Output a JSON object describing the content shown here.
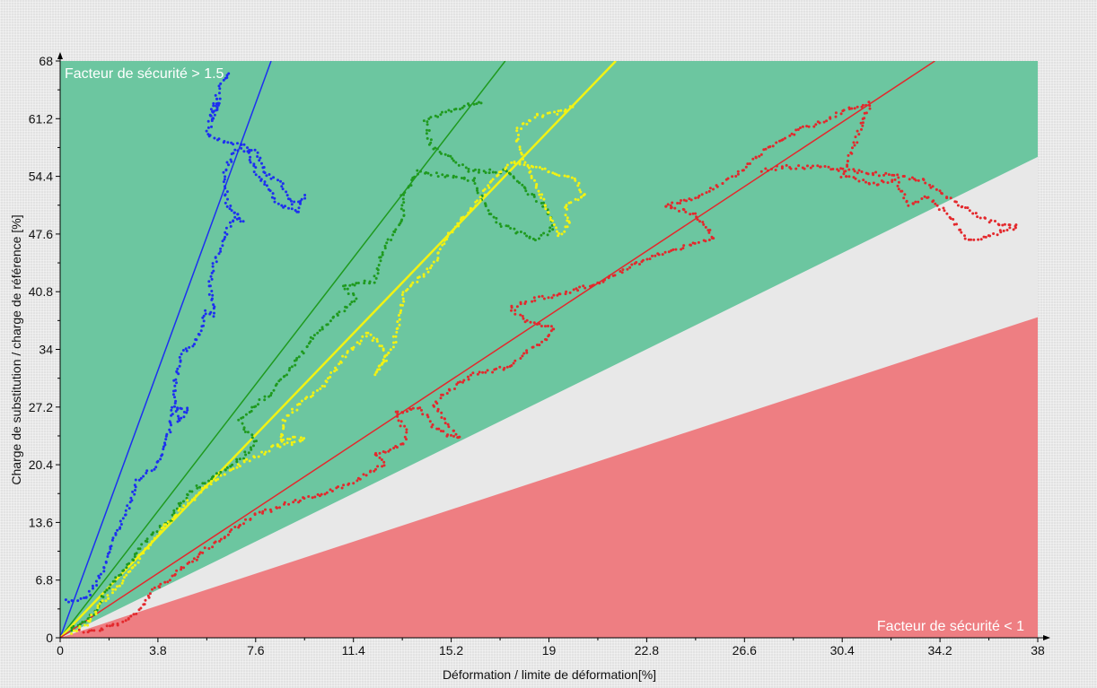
{
  "chart_data": {
    "type": "scatter",
    "xlabel": "Déformation / limite de déformation[%]",
    "ylabel": "Charge de substitution / charge de référence [%]",
    "xlim": [
      0,
      38
    ],
    "ylim": [
      0,
      68
    ],
    "x_ticks": [
      "0",
      "3.8",
      "7.6",
      "11.4",
      "15.2",
      "19",
      "22.8",
      "26.6",
      "30.4",
      "34.2",
      "38"
    ],
    "y_ticks": [
      "0",
      "6.8",
      "13.6",
      "20.4",
      "27.2",
      "34",
      "40.8",
      "47.6",
      "54.4",
      "61.2",
      "68"
    ],
    "annotations": {
      "safe_zone": "Facteur de sécurité > 1.5",
      "danger_zone": "Facteur de sécurité < 1"
    },
    "zones": [
      {
        "id": "safe",
        "color": "#6cc6a0",
        "boundary_y_at_xmax": 56.7
      },
      {
        "id": "transition",
        "color": "#e8e8e8",
        "boundary_y_at_xmax": 37.8
      },
      {
        "id": "danger",
        "color": "#ee7e82"
      }
    ],
    "series": [
      {
        "color": "#1d2ff0",
        "fit_line": [
          [
            0,
            0
          ],
          [
            8.2,
            68
          ]
        ],
        "path": [
          [
            0.2,
            4.4
          ],
          [
            1.0,
            4.6
          ],
          [
            1.6,
            7.5
          ],
          [
            2.0,
            11.0
          ],
          [
            2.6,
            15.0
          ],
          [
            3.0,
            18.5
          ],
          [
            3.8,
            20.5
          ],
          [
            4.2,
            24.0
          ],
          [
            4.4,
            27.0
          ],
          [
            5.0,
            27.0
          ],
          [
            4.6,
            25.5
          ],
          [
            4.4,
            29.0
          ],
          [
            4.7,
            33.5
          ],
          [
            5.3,
            35.0
          ],
          [
            5.7,
            38.5
          ],
          [
            6.0,
            38.0
          ],
          [
            5.8,
            42.0
          ],
          [
            6.2,
            46.0
          ],
          [
            6.8,
            50.0
          ],
          [
            7.1,
            49.0
          ],
          [
            6.5,
            51.0
          ],
          [
            6.4,
            55.0
          ],
          [
            6.8,
            57.5
          ],
          [
            7.6,
            57.5
          ],
          [
            7.9,
            55.0
          ],
          [
            8.6,
            53.5
          ],
          [
            9.0,
            51.0
          ],
          [
            9.5,
            52.0
          ],
          [
            9.2,
            50.0
          ],
          [
            8.4,
            51.5
          ],
          [
            7.6,
            55.0
          ],
          [
            7.2,
            58.0
          ],
          [
            6.3,
            58.5
          ],
          [
            5.7,
            59.5
          ],
          [
            6.0,
            62.0
          ],
          [
            6.2,
            63.5
          ],
          [
            5.8,
            61.0
          ],
          [
            6.2,
            65.0
          ],
          [
            6.6,
            67.0
          ]
        ]
      },
      {
        "color": "#1f9a1f",
        "fit_line": [
          [
            0,
            0
          ],
          [
            17.3,
            68
          ]
        ],
        "path": [
          [
            0.4,
            0.8
          ],
          [
            1.2,
            2.5
          ],
          [
            1.8,
            5.5
          ],
          [
            2.5,
            8.0
          ],
          [
            3.5,
            12.0
          ],
          [
            4.3,
            14.0
          ],
          [
            5.0,
            17.0
          ],
          [
            6.0,
            19.0
          ],
          [
            7.0,
            21.0
          ],
          [
            7.6,
            23.0
          ],
          [
            7.0,
            25.5
          ],
          [
            7.5,
            27.0
          ],
          [
            8.2,
            29.0
          ],
          [
            9.0,
            32.0
          ],
          [
            10.0,
            36.0
          ],
          [
            11.5,
            40.0
          ],
          [
            11.0,
            41.5
          ],
          [
            12.2,
            42.0
          ],
          [
            12.5,
            45.0
          ],
          [
            13.0,
            48.0
          ],
          [
            13.3,
            49.0
          ],
          [
            13.3,
            52.0
          ],
          [
            13.9,
            55.0
          ],
          [
            14.8,
            54.5
          ],
          [
            16.1,
            54.0
          ],
          [
            16.5,
            51.0
          ],
          [
            17.0,
            49.0
          ],
          [
            17.6,
            48.0
          ],
          [
            18.5,
            47.0
          ],
          [
            19.1,
            48.0
          ],
          [
            19.0,
            50.5
          ],
          [
            18.4,
            52.0
          ],
          [
            17.4,
            55.0
          ],
          [
            16.0,
            55.0
          ],
          [
            14.4,
            58.0
          ],
          [
            14.2,
            61.0
          ],
          [
            15.5,
            62.5
          ],
          [
            16.5,
            63.3
          ]
        ]
      },
      {
        "color": "#f2f213",
        "fit_line": [
          [
            0,
            0
          ],
          [
            21.6,
            68
          ]
        ],
        "path": [
          [
            0.4,
            0.6
          ],
          [
            1.0,
            1.5
          ],
          [
            1.6,
            4.0
          ],
          [
            2.2,
            6.0
          ],
          [
            3.0,
            9.0
          ],
          [
            4.0,
            13.0
          ],
          [
            5.0,
            16.0
          ],
          [
            6.0,
            18.5
          ],
          [
            7.0,
            20.4
          ],
          [
            8.0,
            22.0
          ],
          [
            8.8,
            23.5
          ],
          [
            9.5,
            23.5
          ],
          [
            8.5,
            22.5
          ],
          [
            8.7,
            25.5
          ],
          [
            9.3,
            27.5
          ],
          [
            10.3,
            30.0
          ],
          [
            11.0,
            33.0
          ],
          [
            12.0,
            36.0
          ],
          [
            12.7,
            33.5
          ],
          [
            12.3,
            31.0
          ],
          [
            13.0,
            35.0
          ],
          [
            13.2,
            38.0
          ],
          [
            13.4,
            41.0
          ],
          [
            14.0,
            42.5
          ],
          [
            14.5,
            44.0
          ],
          [
            15.0,
            47.0
          ],
          [
            15.8,
            50.0
          ],
          [
            16.4,
            52.0
          ],
          [
            16.8,
            54.0
          ],
          [
            17.2,
            55.0
          ],
          [
            17.6,
            56.2
          ],
          [
            18.5,
            55.5
          ],
          [
            20.0,
            54.0
          ],
          [
            20.4,
            52.0
          ],
          [
            19.6,
            51.0
          ],
          [
            19.8,
            49.0
          ],
          [
            19.4,
            47.5
          ],
          [
            18.2,
            55.5
          ],
          [
            17.8,
            58.0
          ],
          [
            17.8,
            60.0
          ],
          [
            18.5,
            61.5
          ],
          [
            19.5,
            62.0
          ],
          [
            20.0,
            63.0
          ]
        ]
      },
      {
        "color": "#e3282c",
        "fit_line": [
          [
            0,
            0
          ],
          [
            34.0,
            68
          ]
        ],
        "path": [
          [
            0.8,
            0.8
          ],
          [
            1.6,
            1.0
          ],
          [
            2.5,
            2.0
          ],
          [
            3.0,
            3.0
          ],
          [
            3.6,
            5.5
          ],
          [
            4.5,
            7.5
          ],
          [
            5.5,
            10.0
          ],
          [
            6.6,
            12.5
          ],
          [
            7.6,
            14.5
          ],
          [
            9.0,
            16.0
          ],
          [
            10.2,
            17.0
          ],
          [
            11.5,
            18.5
          ],
          [
            12.0,
            19.5
          ],
          [
            12.6,
            20.5
          ],
          [
            12.2,
            21.5
          ],
          [
            13.4,
            23.0
          ],
          [
            13.4,
            24.5
          ],
          [
            13.0,
            26.5
          ],
          [
            14.0,
            27.0
          ],
          [
            14.5,
            25.0
          ],
          [
            15.0,
            24.0
          ],
          [
            15.5,
            23.5
          ],
          [
            14.5,
            27.5
          ],
          [
            15.0,
            29.0
          ],
          [
            16.0,
            31.0
          ],
          [
            17.5,
            32.0
          ],
          [
            18.0,
            33.5
          ],
          [
            18.8,
            35.0
          ],
          [
            19.2,
            36.5
          ],
          [
            18.0,
            37.5
          ],
          [
            17.5,
            39.0
          ],
          [
            18.5,
            40.0
          ],
          [
            19.5,
            40.5
          ],
          [
            20.0,
            41.0
          ],
          [
            21.0,
            42.0
          ],
          [
            22.0,
            43.5
          ],
          [
            23.0,
            45.0
          ],
          [
            24.2,
            46.0
          ],
          [
            25.4,
            47.0
          ],
          [
            25.0,
            49.0
          ],
          [
            24.6,
            50.0
          ],
          [
            23.5,
            51.0
          ],
          [
            24.8,
            52.0
          ],
          [
            25.4,
            53.0
          ],
          [
            26.0,
            54.0
          ],
          [
            26.5,
            55.0
          ],
          [
            27.0,
            56.5
          ],
          [
            27.6,
            58.0
          ],
          [
            28.2,
            59.0
          ],
          [
            28.8,
            60.0
          ],
          [
            29.8,
            61.0
          ],
          [
            30.5,
            62.3
          ],
          [
            31.5,
            63.0
          ],
          [
            30.4,
            54.5
          ],
          [
            31.6,
            53.5
          ],
          [
            32.5,
            54.0
          ],
          [
            33.0,
            51.0
          ],
          [
            33.7,
            52.0
          ],
          [
            34.5,
            50.0
          ],
          [
            35.0,
            48.0
          ],
          [
            35.3,
            47.0
          ],
          [
            36.0,
            47.2
          ],
          [
            36.7,
            48.0
          ],
          [
            37.2,
            48.5
          ],
          [
            36.2,
            49.0
          ],
          [
            35.0,
            51.0
          ],
          [
            33.5,
            54.0
          ],
          [
            31.0,
            55.0
          ],
          [
            29.5,
            55.5
          ],
          [
            28.0,
            55.5
          ],
          [
            27.2,
            55.0
          ]
        ]
      }
    ]
  }
}
